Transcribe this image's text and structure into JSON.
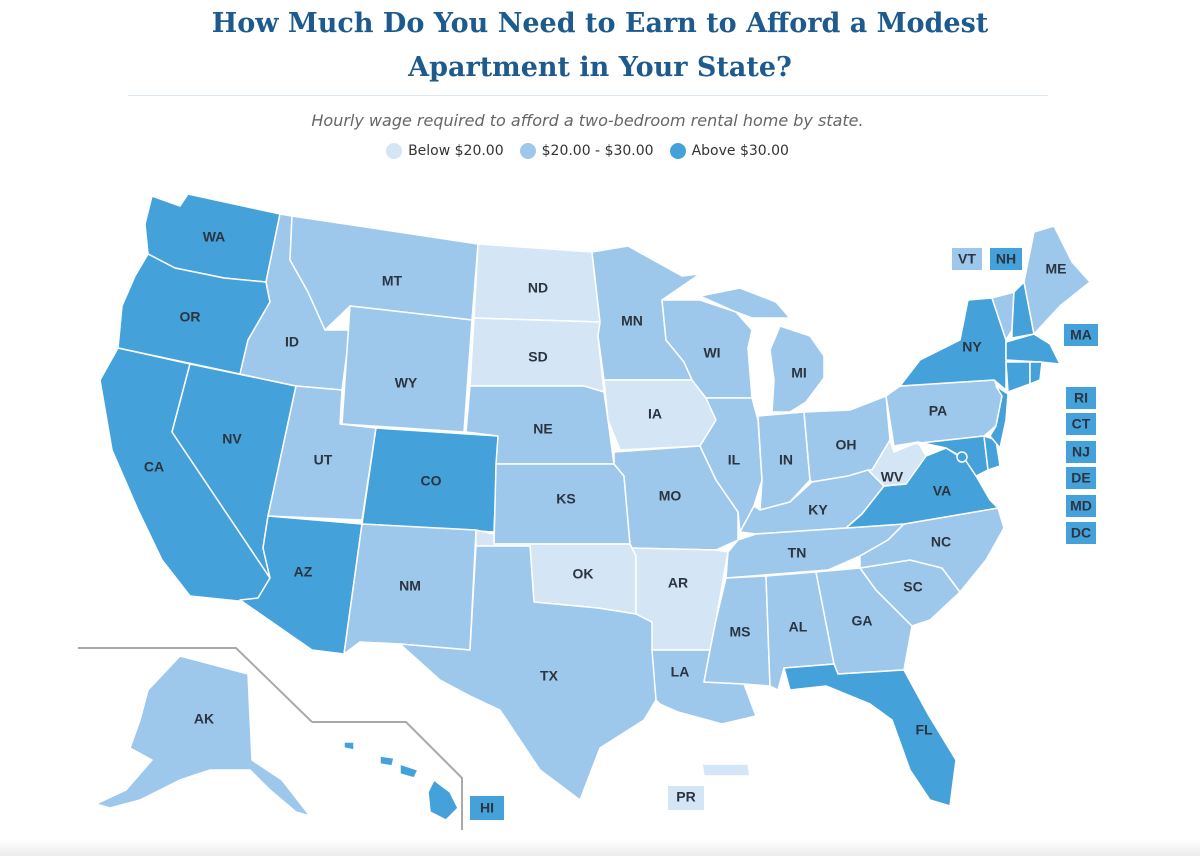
{
  "title": "How Much Do You Need to Earn to Afford a Modest Apartment in Your State?",
  "subtitle": "Hourly wage required to afford a two-bedroom rental home by state.",
  "legend": [
    {
      "label": "Below $20.00",
      "color": "#d4e5f6"
    },
    {
      "label": "$20.00 - $30.00",
      "color": "#9dc8eb"
    },
    {
      "label": "Above $30.00",
      "color": "#44a1da"
    }
  ],
  "colors": {
    "low": "#d4e5f6",
    "mid": "#9dc8eb",
    "high": "#44a1da",
    "border": "#ffffff"
  },
  "states": {
    "WA": "high",
    "OR": "high",
    "CA": "high",
    "NV": "high",
    "AZ": "high",
    "CO": "high",
    "ID": "mid",
    "MT": "mid",
    "WY": "mid",
    "UT": "mid",
    "NM": "mid",
    "TX": "mid",
    "ND": "low",
    "SD": "low",
    "NE": "mid",
    "KS": "mid",
    "OK": "low",
    "MN": "mid",
    "IA": "low",
    "MO": "mid",
    "AR": "low",
    "LA": "mid",
    "WI": "mid",
    "IL": "mid",
    "MI": "mid",
    "IN": "mid",
    "OH": "mid",
    "KY": "mid",
    "TN": "mid",
    "MS": "mid",
    "AL": "mid",
    "GA": "mid",
    "FL": "high",
    "SC": "mid",
    "NC": "mid",
    "VA": "high",
    "WV": "low",
    "PA": "mid",
    "NY": "high",
    "ME": "mid",
    "VT": "mid",
    "NH": "high",
    "MA": "high",
    "RI": "high",
    "CT": "high",
    "NJ": "high",
    "DE": "high",
    "MD": "high",
    "DC": "high",
    "AK": "mid",
    "HI": "high",
    "PR": "low"
  }
}
